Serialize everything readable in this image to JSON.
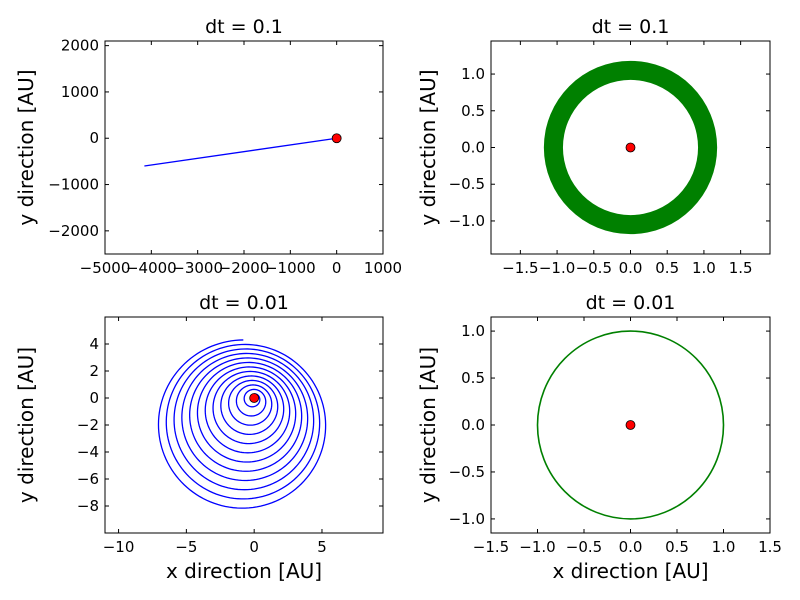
{
  "figure": {
    "marker_color": "#ff0000",
    "marker_edge": "#000000"
  },
  "chart_data": [
    {
      "type": "line",
      "title": "dt = 0.1",
      "xlabel": "",
      "ylabel": "y direction [AU]",
      "xlim": [
        -5000,
        1000
      ],
      "ylim": [
        -2500,
        2100
      ],
      "xticks": [
        -5000,
        -4000,
        -3000,
        -2000,
        -1000,
        0,
        1000
      ],
      "xtick_labels": [
        "−5000",
        "−4000",
        "−3000",
        "−2000",
        "−1000",
        "0",
        "1000"
      ],
      "yticks": [
        -2000,
        -1000,
        0,
        1000,
        2000
      ],
      "ytick_labels": [
        "−2000",
        "−1000",
        "0",
        "1000",
        "2000"
      ],
      "series": [
        {
          "kind": "line",
          "color": "#0000ff",
          "width": 1.3,
          "x": [
            0,
            -4150
          ],
          "y": [
            0,
            -600
          ]
        }
      ],
      "marker": {
        "x": 0,
        "y": 0
      }
    },
    {
      "type": "line",
      "title": "dt = 0.1",
      "xlabel": "",
      "ylabel": "y direction [AU]",
      "xlim": [
        -1.9,
        1.9
      ],
      "ylim": [
        -1.45,
        1.45
      ],
      "xticks": [
        -1.5,
        -1.0,
        -0.5,
        0.0,
        0.5,
        1.0,
        1.5
      ],
      "xtick_labels": [
        "−1.5",
        "−1.0",
        "−0.5",
        "0.0",
        "0.5",
        "1.0",
        "1.5"
      ],
      "yticks": [
        -1.0,
        -0.5,
        0.0,
        0.5,
        1.0
      ],
      "ytick_labels": [
        "−1.0",
        "−0.5",
        "0.0",
        "0.5",
        "1.0"
      ],
      "series": [
        {
          "kind": "annulus",
          "color": "#008000",
          "center": [
            0,
            0
          ],
          "inner_radius": 0.92,
          "outer_radius": 1.18
        }
      ],
      "marker": {
        "x": 0,
        "y": 0
      }
    },
    {
      "type": "line",
      "title": "dt = 0.01",
      "xlabel": "x direction [AU]",
      "ylabel": "y direction [AU]",
      "xlim": [
        -11,
        9.5
      ],
      "ylim": [
        -10,
        6
      ],
      "xticks": [
        -10,
        -5,
        0,
        5
      ],
      "xtick_labels": [
        "−10",
        "−5",
        "0",
        "5"
      ],
      "yticks": [
        -8,
        -6,
        -4,
        -2,
        0,
        2,
        4
      ],
      "ytick_labels": [
        "−8",
        "−6",
        "−4",
        "−2",
        "0",
        "2",
        "4"
      ],
      "series": [
        {
          "kind": "spiral",
          "color": "#0000ff",
          "width": 1.3,
          "turns": 12,
          "r_start": 0.3,
          "r_end": 6.4,
          "center_start": [
            0,
            0
          ],
          "center_end": [
            -0.8,
            -2.1
          ],
          "x_scale": 1.0,
          "y_scale": 1.0
        }
      ],
      "marker": {
        "x": 0,
        "y": 0
      }
    },
    {
      "type": "line",
      "title": "dt = 0.01",
      "xlabel": "x direction [AU]",
      "ylabel": "y direction [AU]",
      "xlim": [
        -1.5,
        1.5
      ],
      "ylim": [
        -1.15,
        1.15
      ],
      "xticks": [
        -1.5,
        -1.0,
        -0.5,
        0.0,
        0.5,
        1.0,
        1.5
      ],
      "xtick_labels": [
        "−1.5",
        "−1.0",
        "−0.5",
        "0.0",
        "0.5",
        "1.0",
        "1.5"
      ],
      "yticks": [
        -1.0,
        -0.5,
        0.0,
        0.5,
        1.0
      ],
      "ytick_labels": [
        "−1.0",
        "−0.5",
        "0.0",
        "0.5",
        "1.0"
      ],
      "series": [
        {
          "kind": "circle",
          "color": "#008000",
          "width": 1.6,
          "center": [
            0,
            0
          ],
          "radius": 1.0
        }
      ],
      "marker": {
        "x": 0,
        "y": 0
      }
    }
  ]
}
